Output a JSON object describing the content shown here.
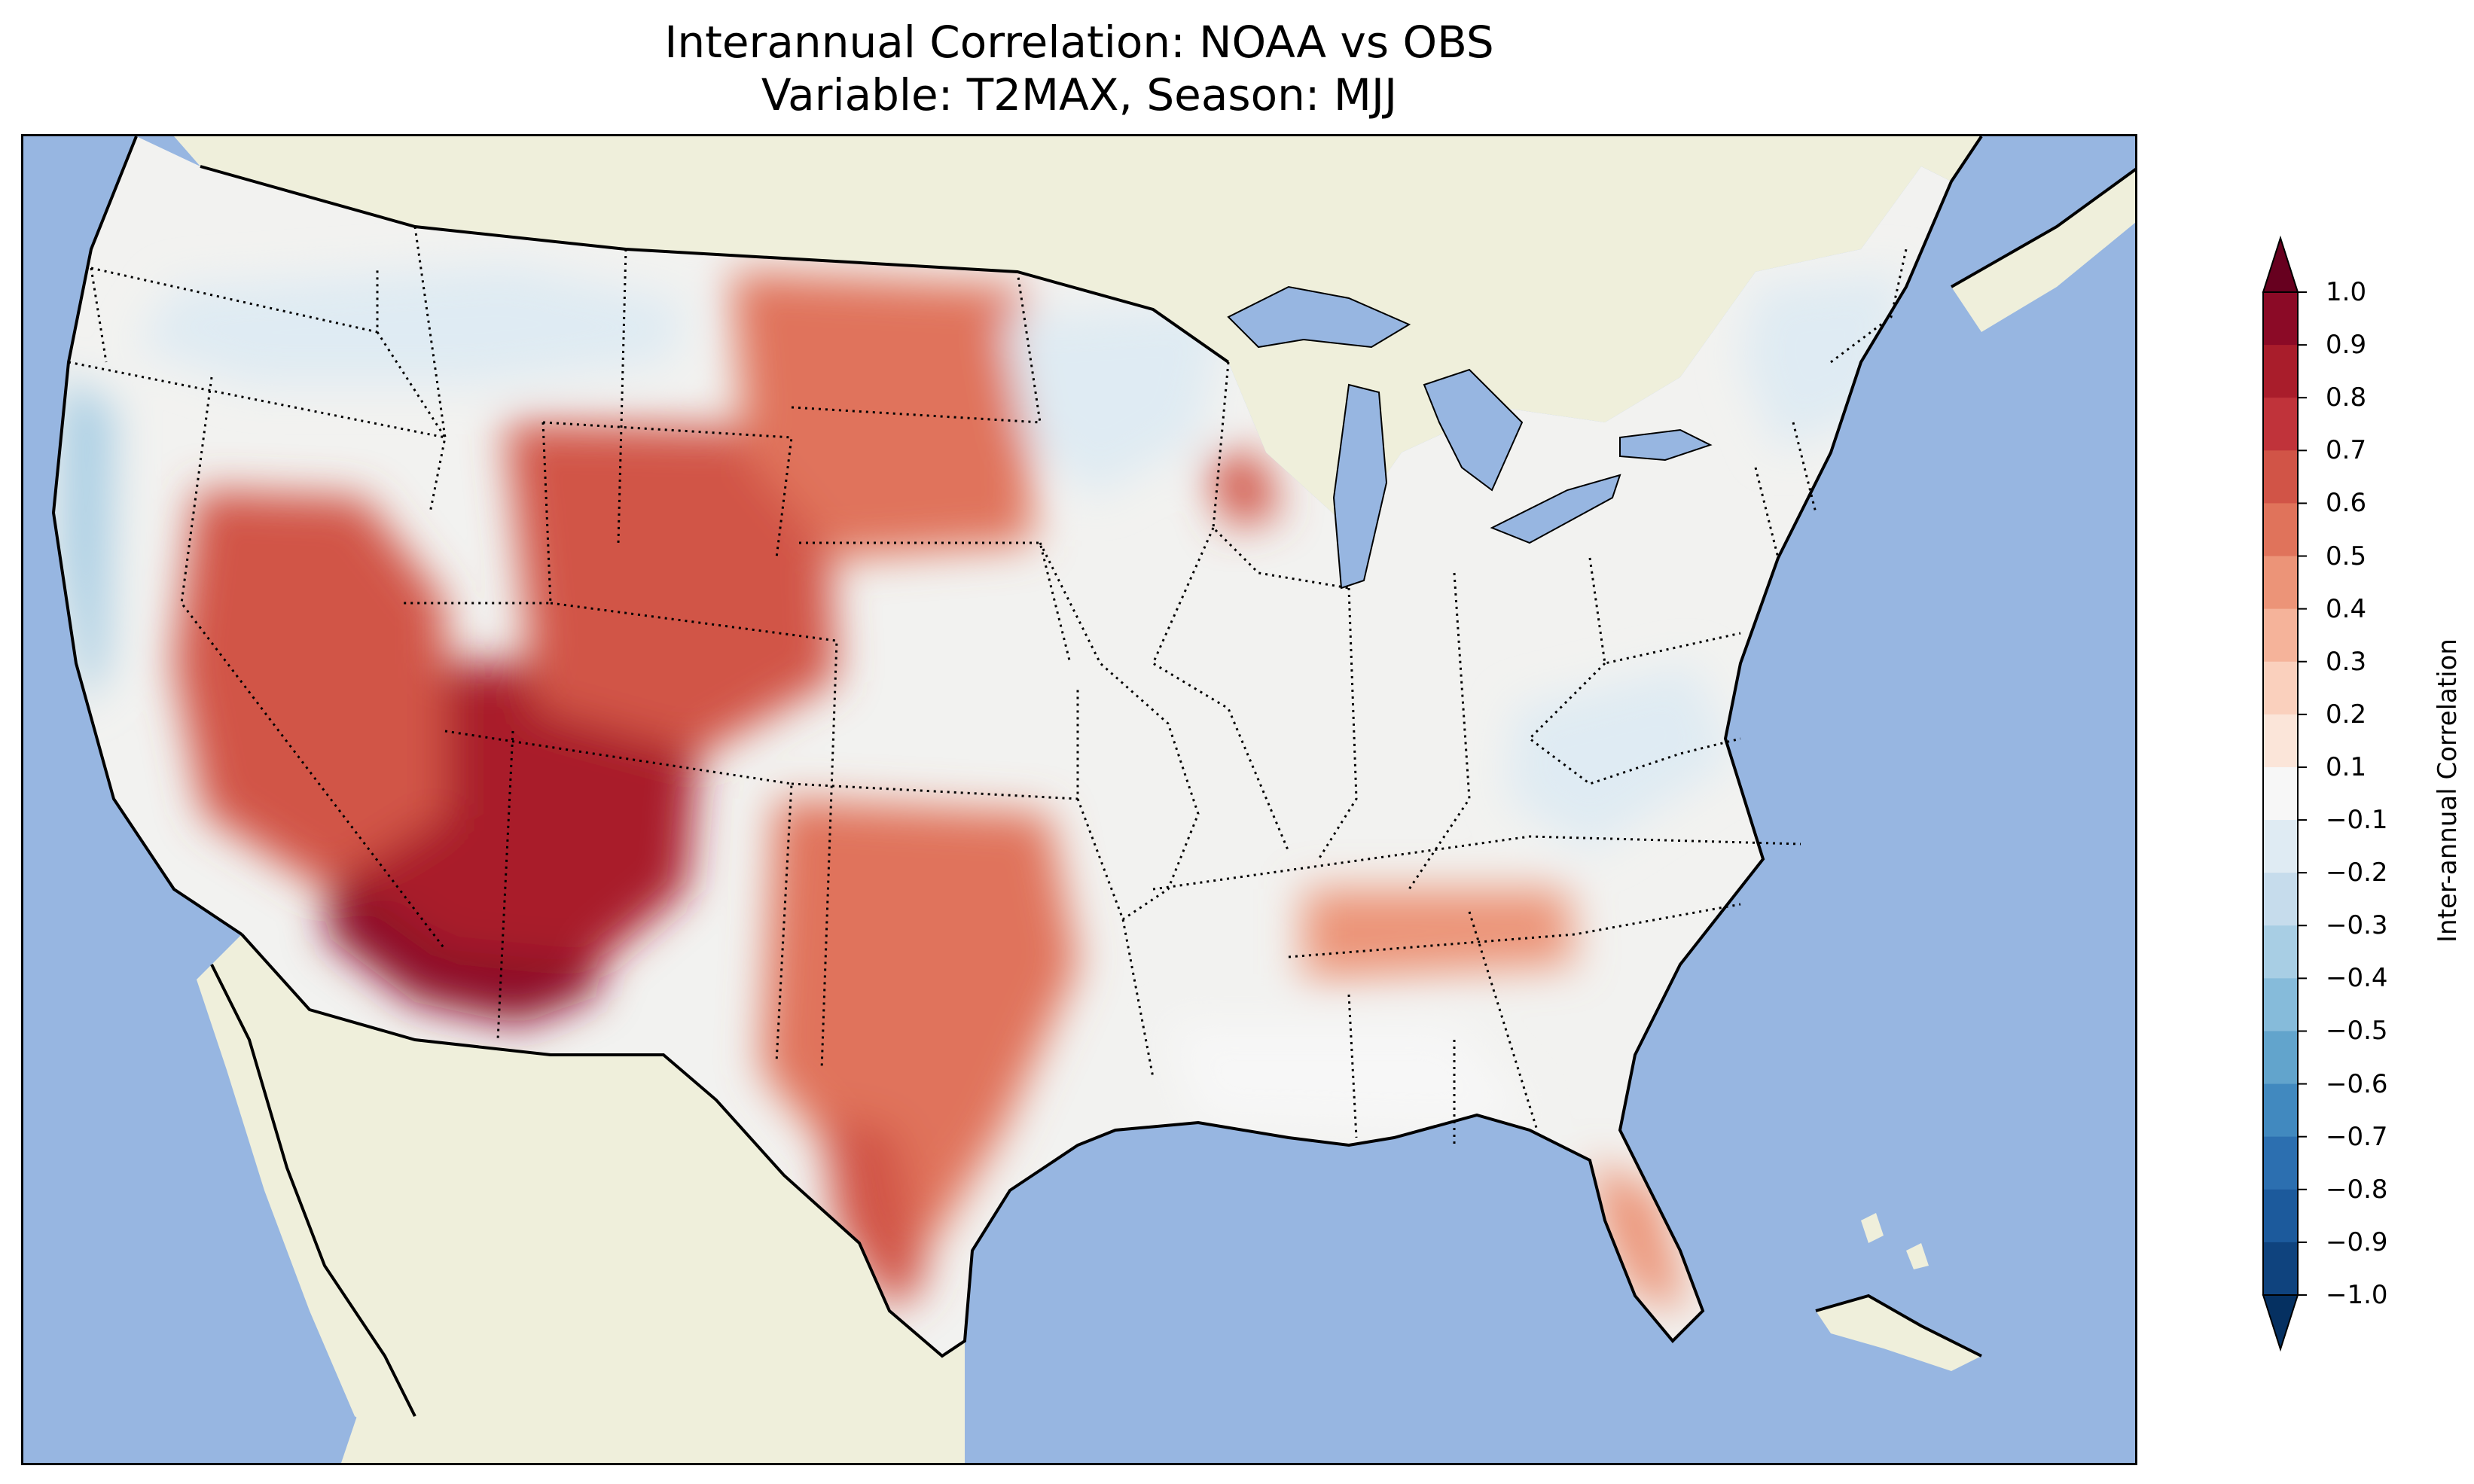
{
  "title": {
    "line1": "Interannual Correlation: NOAA vs OBS",
    "line2": "Variable: T2MAX, Season: MJJ"
  },
  "map": {
    "region": "contiguous United States",
    "projection": "lat-lon",
    "colors": {
      "ocean": "#97b6e1",
      "land": "#efefdb",
      "coastline": "#000000",
      "borders": "#000000"
    },
    "field_regions": [
      {
        "name": "southwest-core",
        "value": 0.85
      },
      {
        "name": "four-corners",
        "value": 0.7
      },
      {
        "name": "great-basin",
        "value": 0.55
      },
      {
        "name": "wyoming-colorado",
        "value": 0.55
      },
      {
        "name": "northern-plains",
        "value": 0.4
      },
      {
        "name": "texas",
        "value": 0.45
      },
      {
        "name": "south-texas",
        "value": 0.55
      },
      {
        "name": "tennessee-valley",
        "value": 0.3
      },
      {
        "name": "florida",
        "value": 0.3
      },
      {
        "name": "iowa-spot",
        "value": 0.5
      },
      {
        "name": "pacific-northwest",
        "value": -0.3
      },
      {
        "name": "california-coast",
        "value": -0.5
      },
      {
        "name": "upper-midwest",
        "value": -0.3
      },
      {
        "name": "appalachians",
        "value": -0.3
      },
      {
        "name": "northeast",
        "value": -0.25
      },
      {
        "name": "gulf-coast",
        "value": -0.2
      }
    ]
  },
  "colorbar": {
    "label": "Inter-annual Correlation",
    "min": -1.0,
    "max": 1.0,
    "extend": "both",
    "ticks": [
      "1.0",
      "0.9",
      "0.8",
      "0.7",
      "0.6",
      "0.5",
      "0.4",
      "0.3",
      "0.2",
      "0.1",
      "−0.1",
      "−0.2",
      "−0.3",
      "−0.4",
      "−0.5",
      "−0.6",
      "−0.7",
      "−0.8",
      "−0.9",
      "−1.0"
    ],
    "colors": [
      "#67001f",
      "#8b0a26",
      "#a91d2b",
      "#c0333a",
      "#d15447",
      "#e0735b",
      "#ec9478",
      "#f5b39a",
      "#fad0bd",
      "#fbe5d9",
      "#f7f7f7",
      "#dfebf3",
      "#c6dcec",
      "#a8cee4",
      "#86bbda",
      "#62a4cc",
      "#4189bf",
      "#2c6fb0",
      "#1c5a9c",
      "#0f437e",
      "#053061"
    ]
  }
}
